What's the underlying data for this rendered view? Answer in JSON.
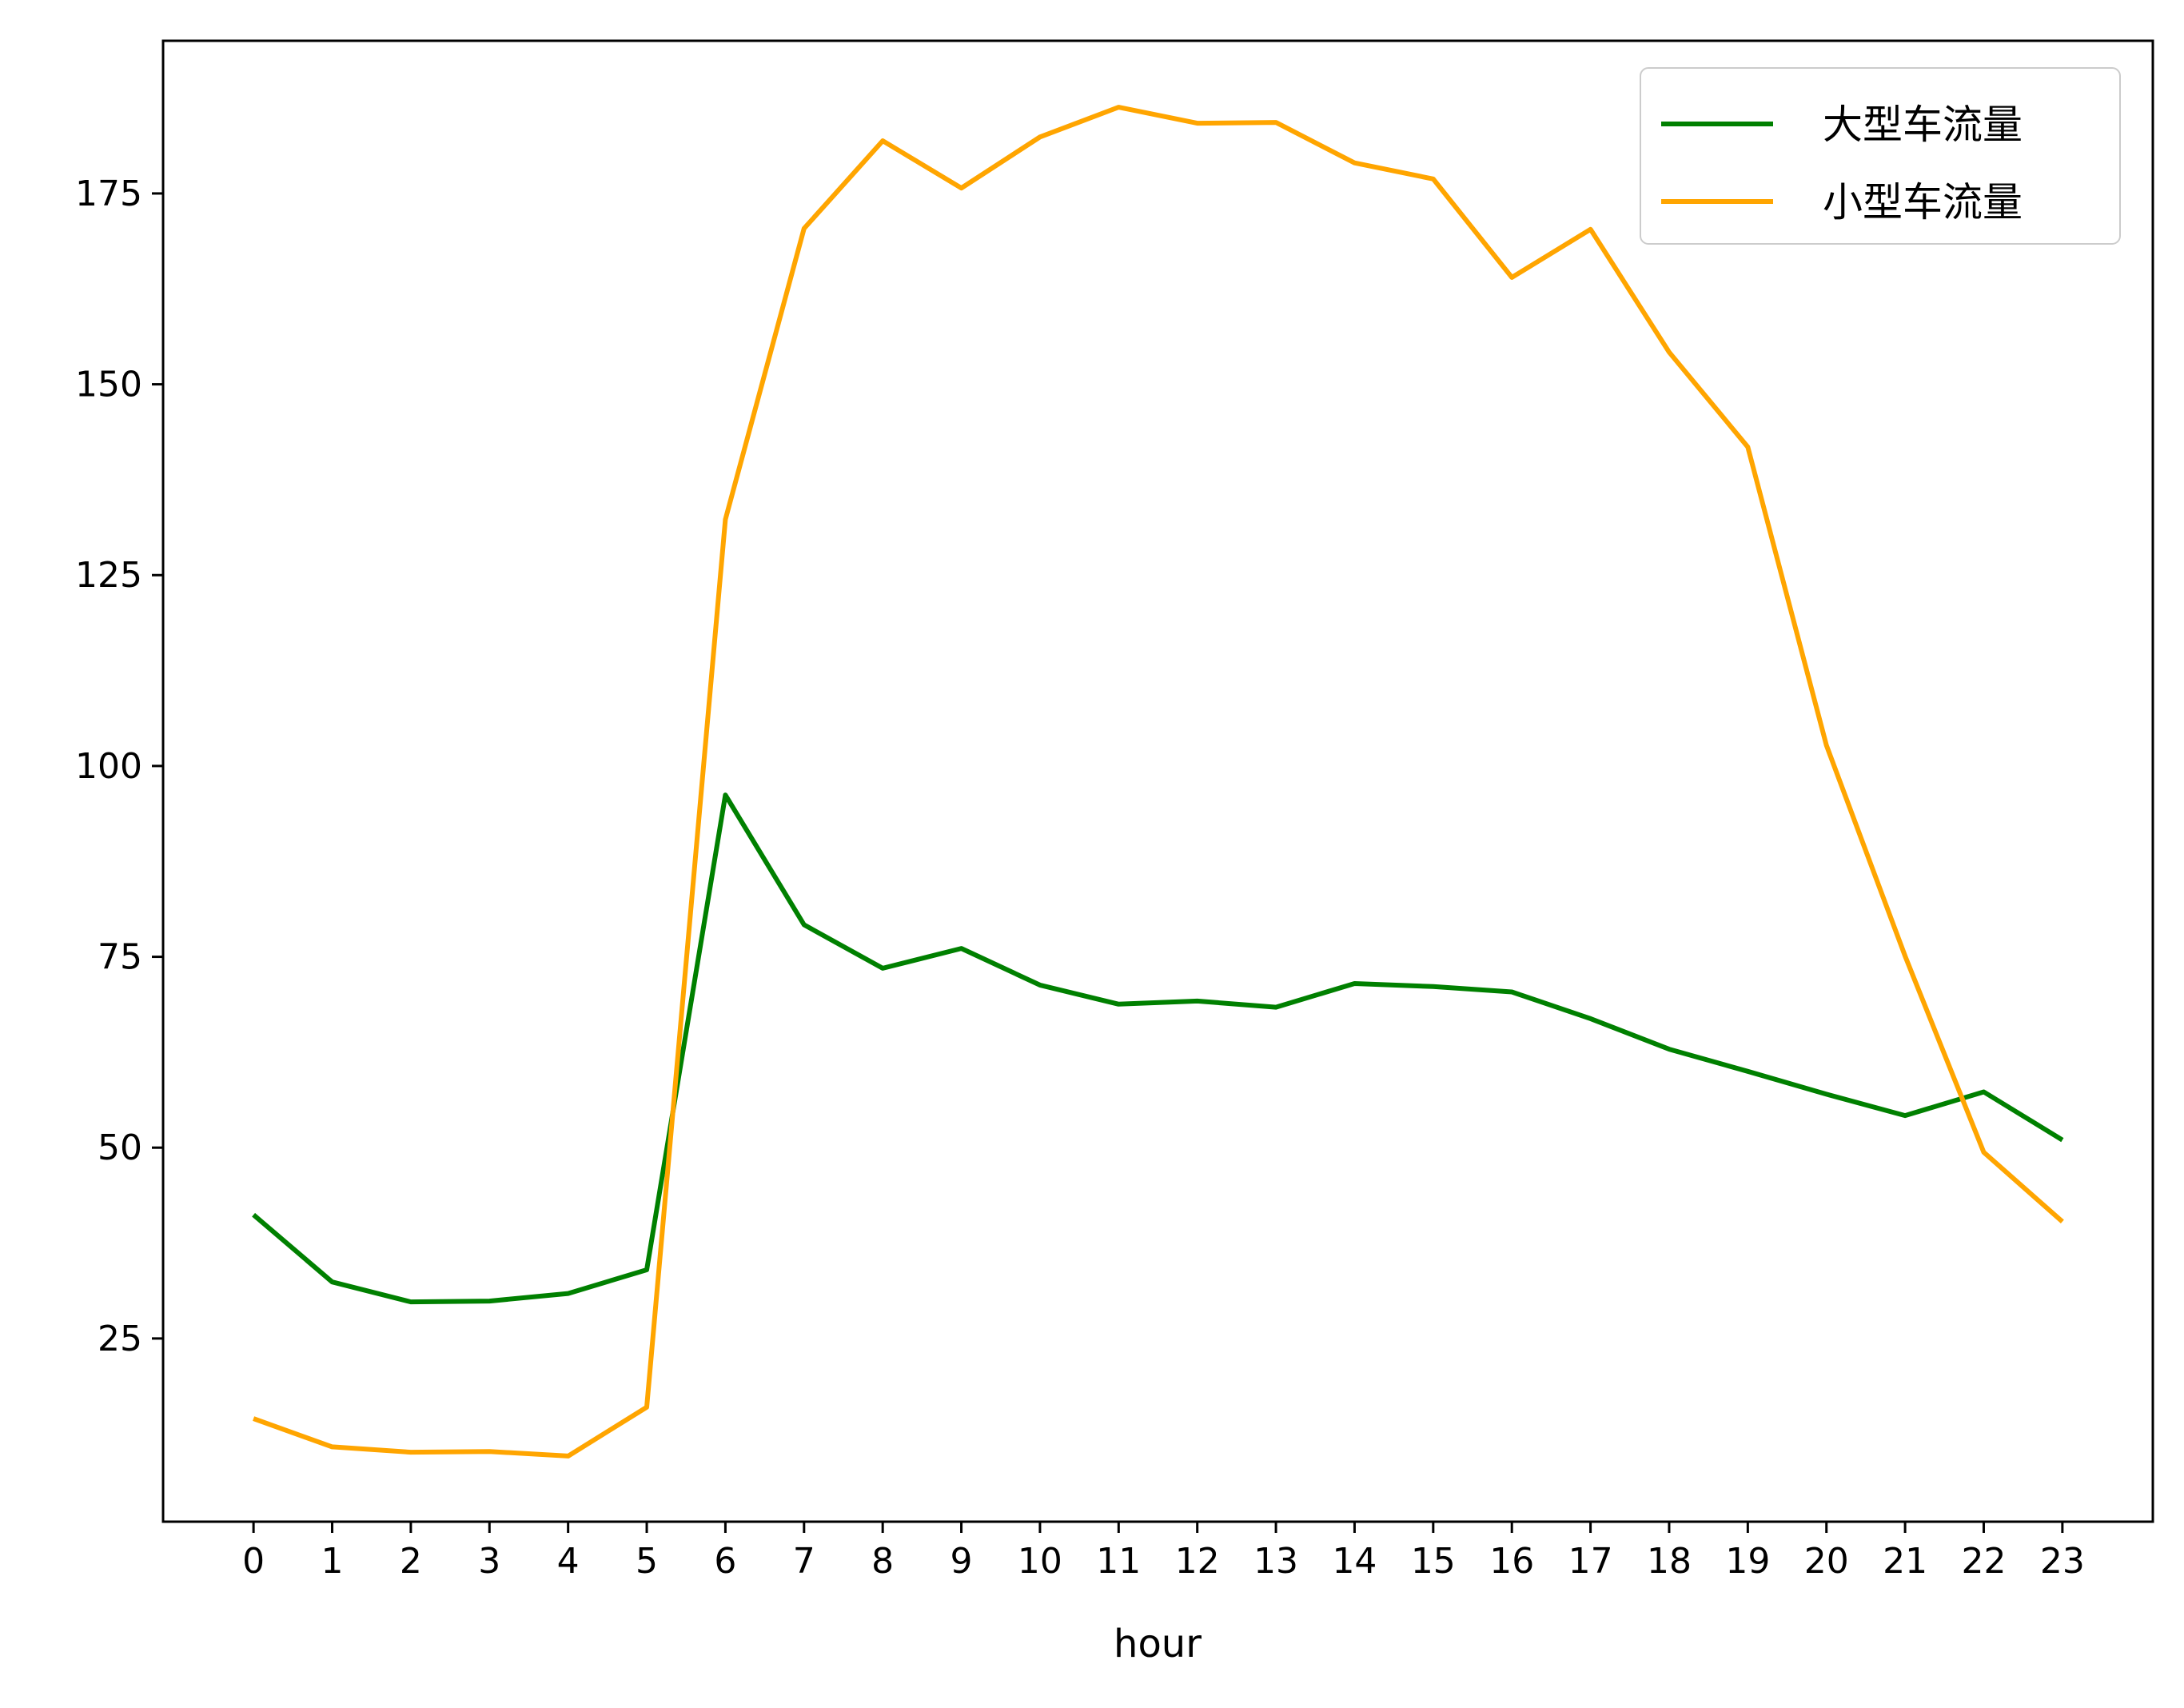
{
  "chart_data": {
    "type": "line",
    "title": "",
    "xlabel": "hour",
    "ylabel": "",
    "x": [
      0,
      1,
      2,
      3,
      4,
      5,
      6,
      7,
      8,
      9,
      10,
      11,
      12,
      13,
      14,
      15,
      16,
      17,
      18,
      19,
      20,
      21,
      22,
      23
    ],
    "xlim": [
      -1.15,
      24.15
    ],
    "ylim": [
      1.0,
      195.0
    ],
    "yticks": [
      25,
      50,
      75,
      100,
      125,
      150,
      175
    ],
    "grid": false,
    "legend_position": "top-right",
    "series": [
      {
        "name": "大型车流量",
        "color": "#008000",
        "values": [
          41.2,
          32.4,
          29.8,
          29.9,
          30.9,
          34.0,
          96.2,
          79.2,
          73.5,
          76.1,
          71.3,
          68.8,
          69.2,
          68.4,
          71.5,
          71.1,
          70.4,
          66.9,
          62.9,
          60.0,
          57.0,
          54.2,
          57.3,
          51.0
        ]
      },
      {
        "name": "小型车流量",
        "color": "#FFA500",
        "values": [
          14.5,
          10.8,
          10.1,
          10.2,
          9.6,
          16.0,
          132.3,
          170.4,
          181.9,
          175.7,
          182.4,
          186.3,
          184.2,
          184.3,
          179.0,
          176.9,
          164.0,
          170.3,
          154.2,
          141.8,
          102.7,
          75.1,
          49.4,
          40.3
        ]
      }
    ]
  }
}
